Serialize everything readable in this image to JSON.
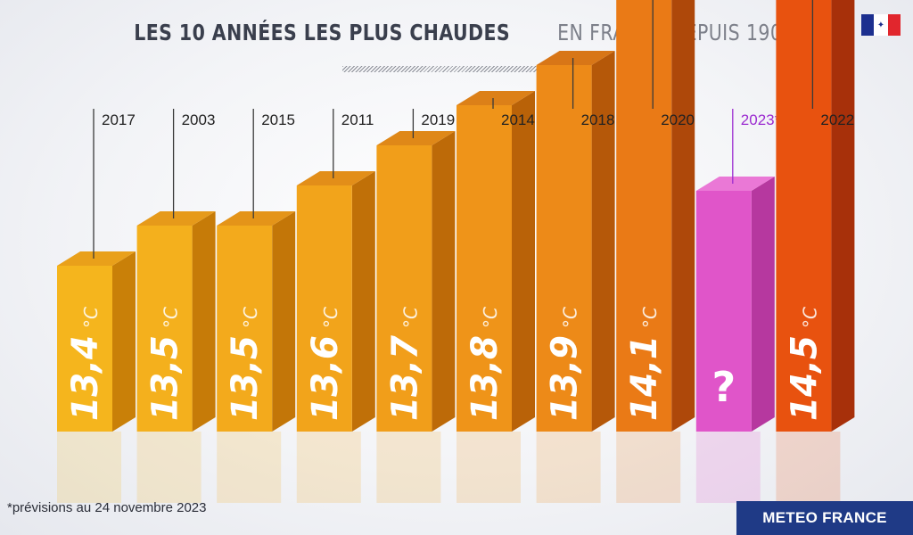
{
  "header": {
    "title_bold": "LES 10 ANNÉES LES PLUS CHAUDES",
    "title_light": "EN FRANCE DEPUIS 1900"
  },
  "logo": {
    "icon": "french-republic-flag-logo"
  },
  "footnote": "*prévisions au 24 novembre 2023",
  "brand": "METEO FRANCE",
  "colors": {
    "pending": "#e055c9",
    "highest": "#e8520f",
    "accent_year": "#9b2bd0"
  },
  "chart_data": {
    "type": "bar",
    "categories": [
      "2017",
      "2003",
      "2015",
      "2011",
      "2019",
      "2014",
      "2018",
      "2020",
      "2023*",
      "2022"
    ],
    "values": [
      13.4,
      13.5,
      13.5,
      13.6,
      13.7,
      13.8,
      13.9,
      14.1,
      null,
      14.5
    ],
    "value_labels": [
      "13,4",
      "13,5",
      "13,5",
      "13,6",
      "13,7",
      "13,8",
      "13,9",
      "14,1",
      "?",
      "14,5"
    ],
    "unit": "°C",
    "title": "LES 10 ANNÉES LES PLUS CHAUDES EN FRANCE DEPUIS 1900"
  }
}
